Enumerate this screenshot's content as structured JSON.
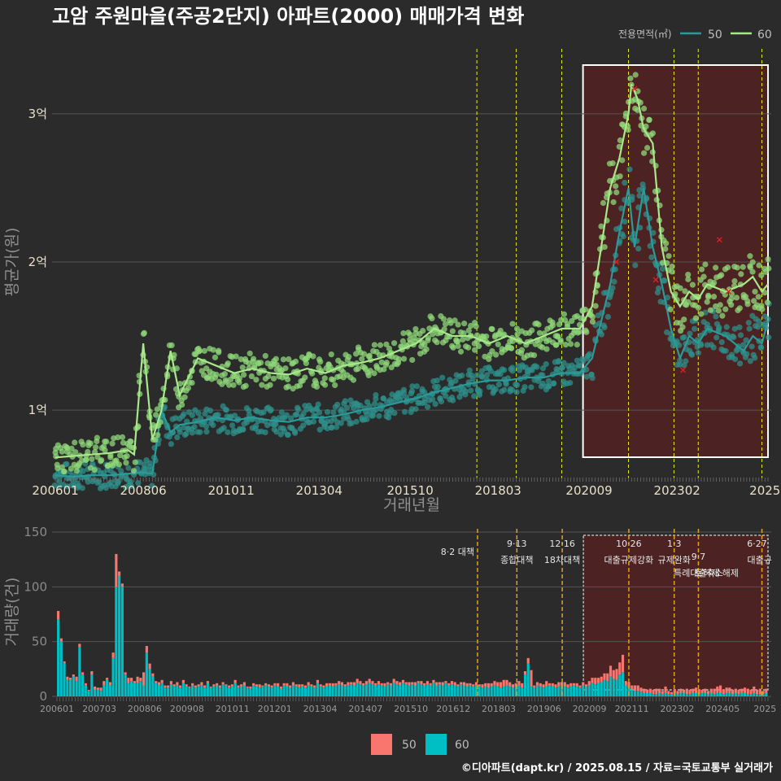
{
  "footer": "©디아파트(dapt.kr) / 2025.08.15 / 자료=국토교통부 실거래가",
  "colors": {
    "background": "#2b2b2b",
    "area50_line": "#2a9a9a",
    "area60_line": "#a8e88a",
    "bar50": "#f8766d",
    "bar60": "#00bfc4",
    "event_line": "#e8e81a",
    "highlight": "#5a2020"
  },
  "chart_data": [
    {
      "type": "line",
      "title": "고암 주원마을(주공2단지) 아파트(2000) 매매가격 변화",
      "xlabel": "거래년월",
      "ylabel": "평균가(원)",
      "legend_title": "전용면적(㎡)",
      "legend_position": "top-right",
      "x_ticks": [
        "200601",
        "200806",
        "201011",
        "201304",
        "201510",
        "201803",
        "202009",
        "202302",
        "2025"
      ],
      "y_ticks": [
        "1억",
        "2억",
        "3억"
      ],
      "y_tick_values": [
        1,
        2,
        3
      ],
      "ylim": [
        0.55,
        3.45
      ],
      "xlim": [
        "2006-01",
        "2025-08"
      ],
      "y_unit": "억",
      "grid": true,
      "event_dates": [
        "2017-08",
        "2018-09",
        "2019-12",
        "2021-10",
        "2023-01",
        "2023-09",
        "2025-06"
      ],
      "highlight_range": [
        "2020-07",
        "2025-08"
      ],
      "series": [
        {
          "name": "50",
          "points": [
            [
              "2006-01",
              0.56
            ],
            [
              "2006-07",
              0.55
            ],
            [
              "2007-01",
              0.56
            ],
            [
              "2007-07",
              0.56
            ],
            [
              "2008-01",
              0.57
            ],
            [
              "2008-06",
              0.58
            ],
            [
              "2008-09",
              0.57
            ],
            [
              "2008-12",
              1.0
            ],
            [
              "2009-03",
              0.85
            ],
            [
              "2009-06",
              0.9
            ],
            [
              "2009-12",
              0.92
            ],
            [
              "2010-06",
              0.95
            ],
            [
              "2010-12",
              0.93
            ],
            [
              "2011-06",
              0.95
            ],
            [
              "2011-12",
              0.93
            ],
            [
              "2012-06",
              0.92
            ],
            [
              "2012-12",
              0.95
            ],
            [
              "2013-06",
              0.95
            ],
            [
              "2013-12",
              0.97
            ],
            [
              "2014-06",
              1.0
            ],
            [
              "2014-12",
              1.02
            ],
            [
              "2015-06",
              1.05
            ],
            [
              "2015-12",
              1.08
            ],
            [
              "2016-06",
              1.12
            ],
            [
              "2016-12",
              1.15
            ],
            [
              "2017-06",
              1.18
            ],
            [
              "2017-12",
              1.2
            ],
            [
              "2018-06",
              1.2
            ],
            [
              "2018-12",
              1.22
            ],
            [
              "2019-06",
              1.22
            ],
            [
              "2019-12",
              1.25
            ],
            [
              "2020-06",
              1.25
            ],
            [
              "2020-10",
              1.35
            ],
            [
              "2021-01",
              1.6
            ],
            [
              "2021-04",
              1.85
            ],
            [
              "2021-07",
              2.2
            ],
            [
              "2021-10",
              2.5
            ],
            [
              "2021-12",
              2.1
            ],
            [
              "2022-03",
              2.5
            ],
            [
              "2022-06",
              2.1
            ],
            [
              "2022-09",
              1.85
            ],
            [
              "2022-12",
              1.55
            ],
            [
              "2023-03",
              1.35
            ],
            [
              "2023-06",
              1.5
            ],
            [
              "2023-09",
              1.45
            ],
            [
              "2023-12",
              1.55
            ],
            [
              "2024-06",
              1.5
            ],
            [
              "2024-12",
              1.4
            ],
            [
              "2025-03",
              1.5
            ],
            [
              "2025-06",
              1.45
            ],
            [
              "2025-08",
              1.6
            ]
          ]
        },
        {
          "name": "60",
          "points": [
            [
              "2006-01",
              0.68
            ],
            [
              "2006-07",
              0.69
            ],
            [
              "2007-01",
              0.7
            ],
            [
              "2007-07",
              0.71
            ],
            [
              "2008-01",
              0.73
            ],
            [
              "2008-03",
              0.7
            ],
            [
              "2008-06",
              1.45
            ],
            [
              "2008-09",
              0.8
            ],
            [
              "2008-12",
              1.0
            ],
            [
              "2009-03",
              1.4
            ],
            [
              "2009-06",
              1.1
            ],
            [
              "2009-12",
              1.35
            ],
            [
              "2010-06",
              1.3
            ],
            [
              "2010-12",
              1.25
            ],
            [
              "2011-06",
              1.28
            ],
            [
              "2011-12",
              1.25
            ],
            [
              "2012-06",
              1.24
            ],
            [
              "2012-12",
              1.28
            ],
            [
              "2013-06",
              1.25
            ],
            [
              "2013-12",
              1.3
            ],
            [
              "2014-06",
              1.32
            ],
            [
              "2014-12",
              1.35
            ],
            [
              "2015-06",
              1.4
            ],
            [
              "2015-12",
              1.45
            ],
            [
              "2016-06",
              1.55
            ],
            [
              "2016-12",
              1.5
            ],
            [
              "2017-06",
              1.5
            ],
            [
              "2017-12",
              1.45
            ],
            [
              "2018-06",
              1.5
            ],
            [
              "2018-12",
              1.45
            ],
            [
              "2019-06",
              1.5
            ],
            [
              "2019-12",
              1.55
            ],
            [
              "2020-06",
              1.55
            ],
            [
              "2020-10",
              1.7
            ],
            [
              "2021-01",
              2.1
            ],
            [
              "2021-04",
              2.5
            ],
            [
              "2021-07",
              2.7
            ],
            [
              "2021-10",
              3.0
            ],
            [
              "2021-11",
              3.2
            ],
            [
              "2022-01",
              3.1
            ],
            [
              "2022-03",
              2.9
            ],
            [
              "2022-06",
              2.8
            ],
            [
              "2022-09",
              2.1
            ],
            [
              "2022-12",
              1.8
            ],
            [
              "2023-03",
              1.7
            ],
            [
              "2023-06",
              1.8
            ],
            [
              "2023-09",
              1.75
            ],
            [
              "2023-12",
              1.85
            ],
            [
              "2024-06",
              1.8
            ],
            [
              "2024-12",
              1.85
            ],
            [
              "2025-03",
              1.9
            ],
            [
              "2025-06",
              1.8
            ],
            [
              "2025-08",
              1.85
            ]
          ]
        }
      ]
    },
    {
      "type": "bar",
      "stacked": true,
      "ylabel": "거래량(건)",
      "ylim": [
        0,
        150
      ],
      "y_ticks": [
        0,
        50,
        100,
        150
      ],
      "x_ticks": [
        "200601",
        "200703",
        "200806",
        "200908",
        "201011",
        "201201",
        "201304",
        "201407",
        "201510",
        "201612",
        "201803",
        "201906",
        "202009",
        "202111",
        "202302",
        "202405",
        "2025"
      ],
      "events": [
        {
          "date": "2017-08",
          "date_label": "8·2",
          "label": "대책"
        },
        {
          "date": "2018-09",
          "date_label": "9·13",
          "label": "종합대책"
        },
        {
          "date": "2019-12",
          "date_label": "12·16",
          "label": "18차대책"
        },
        {
          "date": "2021-10",
          "date_label": "10·26",
          "label": "대출규제강화"
        },
        {
          "date": "2023-01",
          "date_label": "1·3",
          "label": "규제완화"
        },
        {
          "date": "2023-09",
          "date_label": "9·7",
          "label": "특례대출축소"
        },
        {
          "date": "2025-06",
          "date_label": "6·27",
          "label": "대출규"
        },
        {
          "date": "2024-03",
          "date_label": "",
          "label": "토허제 해제"
        }
      ],
      "series": [
        {
          "name": "50",
          "values": [
            8,
            3,
            2,
            3,
            2,
            2,
            4,
            3,
            2,
            2,
            1,
            3,
            3,
            2,
            3,
            4,
            2,
            3,
            5,
            30,
            4,
            3,
            2,
            5,
            3,
            2,
            6,
            3,
            12,
            6,
            5,
            3,
            2,
            3,
            3,
            2,
            2,
            3,
            2,
            3,
            2,
            3,
            2,
            1,
            2,
            2,
            2,
            3,
            2,
            2,
            1,
            2,
            2,
            2,
            2,
            1,
            2,
            2,
            3,
            2,
            2,
            3,
            1,
            2,
            2,
            2,
            3,
            1,
            2,
            2,
            2,
            2,
            3,
            2,
            2,
            3,
            2,
            3,
            2,
            3,
            2,
            2,
            3,
            2,
            2,
            3,
            2,
            2,
            3,
            2,
            3,
            2,
            3,
            3,
            2,
            3,
            2,
            3,
            4,
            3,
            2,
            3,
            4,
            3,
            2,
            3,
            2,
            3,
            2,
            2,
            4,
            3,
            3,
            3,
            2,
            3,
            2,
            3,
            2,
            3,
            2,
            3,
            2,
            3,
            3,
            2,
            3,
            2,
            2,
            3,
            3,
            2,
            2,
            3,
            3,
            2,
            2,
            3,
            2,
            3,
            3,
            4,
            3,
            4,
            4,
            5,
            6,
            5,
            4,
            3,
            3,
            4,
            4,
            3,
            5,
            15,
            2,
            3,
            3,
            3,
            5,
            2,
            3,
            3,
            4,
            3,
            4,
            3,
            3,
            2,
            3,
            2,
            3,
            2,
            4,
            5,
            6,
            5,
            5,
            6,
            7,
            10,
            8,
            10,
            11,
            16,
            4,
            5,
            4,
            5,
            5,
            4,
            4,
            3,
            4,
            4,
            5,
            4,
            3,
            6,
            3,
            2,
            3,
            3,
            4,
            3,
            5,
            4,
            4,
            5,
            4,
            3,
            4,
            3,
            4,
            5,
            6,
            7,
            4,
            5,
            5,
            4,
            4,
            4,
            4,
            5,
            5,
            4,
            6,
            4,
            5,
            3,
            4
          ]
        },
        {
          "name": "60",
          "values": [
            70,
            50,
            30,
            15,
            15,
            18,
            14,
            45,
            20,
            10,
            5,
            20,
            6,
            6,
            5,
            10,
            15,
            10,
            35,
            100,
            110,
            100,
            20,
            12,
            14,
            12,
            12,
            14,
            10,
            40,
            25,
            18,
            12,
            10,
            12,
            8,
            8,
            11,
            9,
            10,
            8,
            12,
            9,
            8,
            10,
            8,
            9,
            10,
            8,
            12,
            8,
            9,
            10,
            8,
            11,
            10,
            8,
            9,
            12,
            8,
            9,
            10,
            8,
            7,
            10,
            9,
            8,
            9,
            10,
            9,
            8,
            10,
            9,
            7,
            10,
            9,
            8,
            10,
            9,
            8,
            9,
            8,
            10,
            9,
            8,
            12,
            9,
            8,
            9,
            10,
            9,
            10,
            11,
            10,
            9,
            10,
            11,
            10,
            12,
            11,
            10,
            11,
            12,
            11,
            10,
            11,
            10,
            9,
            11,
            10,
            12,
            11,
            10,
            12,
            11,
            10,
            11,
            10,
            12,
            11,
            10,
            11,
            10,
            12,
            10,
            11,
            10,
            12,
            10,
            11,
            10,
            9,
            11,
            10,
            9,
            10,
            9,
            10,
            9,
            8,
            9,
            8,
            9,
            10,
            9,
            8,
            9,
            10,
            9,
            8,
            9,
            10,
            8,
            20,
            30,
            9,
            8,
            10,
            9,
            8,
            9,
            10,
            9,
            8,
            9,
            10,
            9,
            8,
            9,
            10,
            9,
            8,
            10,
            9,
            10,
            12,
            11,
            12,
            13,
            15,
            14,
            18,
            16,
            15,
            20,
            22,
            10,
            8,
            6,
            5,
            5,
            4,
            3,
            3,
            3,
            2,
            2,
            3,
            2,
            3,
            2,
            2,
            3,
            2,
            3,
            3,
            2,
            2,
            3,
            3,
            2,
            3,
            3,
            2,
            3,
            2,
            3,
            3,
            2,
            3,
            3,
            2,
            3,
            2,
            3,
            3,
            2,
            2,
            3,
            2,
            2,
            2,
            3
          ]
        }
      ]
    }
  ]
}
